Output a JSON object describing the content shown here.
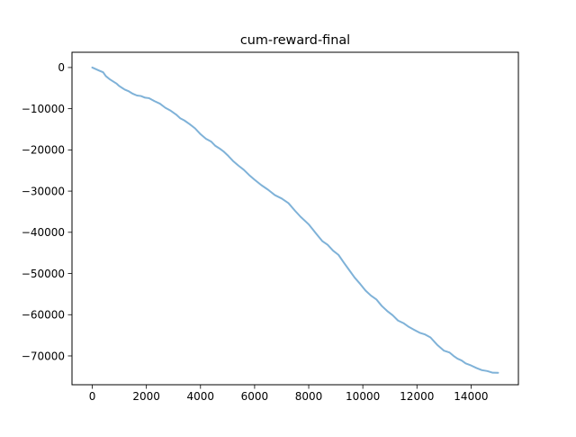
{
  "chart_data": {
    "type": "line",
    "title": "cum-reward-final",
    "xlabel": "",
    "ylabel": "",
    "xlim": [
      -750,
      15750
    ],
    "ylim": [
      -77000,
      3700
    ],
    "xticks": [
      0,
      2000,
      4000,
      6000,
      8000,
      10000,
      12000,
      14000
    ],
    "xtick_labels": [
      "0",
      "2000",
      "4000",
      "6000",
      "8000",
      "10000",
      "12000",
      "14000"
    ],
    "yticks": [
      0,
      -10000,
      -20000,
      -30000,
      -40000,
      -50000,
      -60000,
      -70000
    ],
    "ytick_labels": [
      "0",
      "−10000",
      "−20000",
      "−30000",
      "−40000",
      "−50000",
      "−60000",
      "−70000"
    ],
    "grid": false,
    "legend": "none",
    "series": [
      {
        "color": "#7fb2d8",
        "x": [
          0,
          250,
          400,
          500,
          650,
          800,
          900,
          1000,
          1100,
          1200,
          1350,
          1500,
          1650,
          1800,
          1950,
          2100,
          2300,
          2500,
          2700,
          2900,
          3100,
          3250,
          3400,
          3600,
          3800,
          4000,
          4200,
          4400,
          4550,
          4700,
          4850,
          5000,
          5200,
          5400,
          5600,
          5800,
          6000,
          6250,
          6500,
          6750,
          7000,
          7250,
          7500,
          7700,
          7900,
          8000,
          8100,
          8200,
          8300,
          8500,
          8700,
          8900,
          9100,
          9300,
          9500,
          9700,
          9900,
          10100,
          10300,
          10500,
          10700,
          10900,
          11100,
          11300,
          11500,
          11700,
          11900,
          12100,
          12300,
          12500,
          12750,
          13000,
          13200,
          13350,
          13500,
          13650,
          13800,
          14000,
          14200,
          14400,
          14600,
          14800,
          15000
        ],
        "y": [
          0,
          -700,
          -1200,
          -2200,
          -2800,
          -3500,
          -4000,
          -4400,
          -4900,
          -5400,
          -5900,
          -6300,
          -6800,
          -7000,
          -7200,
          -7400,
          -8200,
          -8900,
          -9700,
          -10500,
          -11500,
          -12200,
          -12800,
          -13800,
          -14900,
          -16100,
          -17300,
          -18100,
          -18900,
          -19600,
          -20400,
          -21400,
          -22600,
          -23800,
          -24900,
          -26000,
          -27200,
          -28600,
          -29800,
          -30900,
          -31800,
          -33000,
          -34700,
          -36200,
          -37500,
          -38200,
          -38800,
          -39700,
          -40600,
          -42000,
          -43000,
          -44500,
          -45600,
          -47300,
          -49200,
          -51100,
          -52400,
          -54100,
          -55400,
          -56400,
          -57800,
          -59100,
          -60200,
          -61300,
          -62000,
          -63000,
          -63800,
          -64300,
          -64800,
          -65600,
          -67200,
          -68700,
          -69200,
          -70100,
          -70600,
          -71100,
          -71900,
          -72200,
          -72900,
          -73500,
          -73800,
          -74000,
          -74100
        ]
      }
    ]
  }
}
